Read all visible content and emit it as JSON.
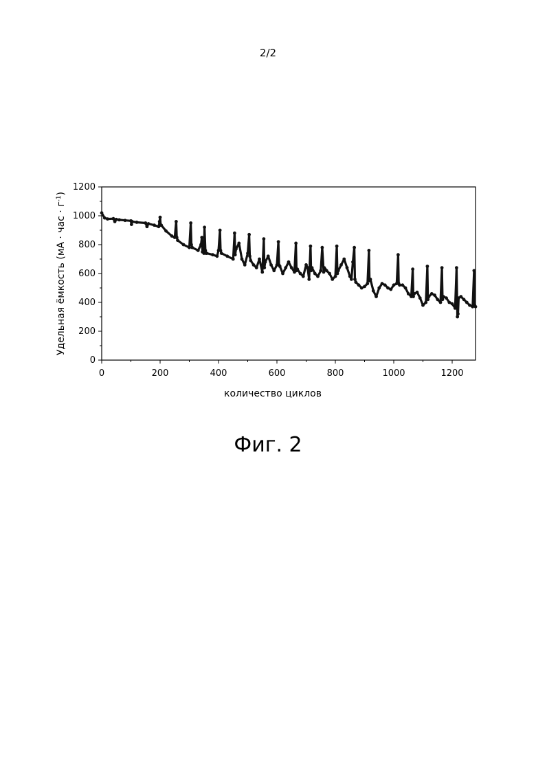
{
  "page": {
    "number": "2/2",
    "caption": "Фиг. 2"
  },
  "chart_data": {
    "type": "line",
    "title": "",
    "xlabel": "количество циклов",
    "ylabel_main": "Удельная ёмкость (мА · час · г",
    "ylabel_sup": "-1",
    "ylabel_close": ")",
    "xlim": [
      0,
      1280
    ],
    "ylim": [
      0,
      1200
    ],
    "xticks": [
      0,
      200,
      400,
      600,
      800,
      1000,
      1200
    ],
    "yticks": [
      0,
      200,
      400,
      600,
      800,
      1000,
      1200
    ],
    "grid": false,
    "legend": "none",
    "color": "#111111",
    "series": [
      {
        "x": [
          0,
          10,
          20,
          40,
          45,
          50,
          60,
          80,
          100,
          102,
          104,
          120,
          150,
          155,
          160,
          180,
          195,
          198,
          200,
          202,
          204,
          220,
          240,
          250,
          255,
          257,
          260,
          280,
          300,
          305,
          307,
          310,
          330,
          340,
          343,
          345,
          350,
          352,
          355,
          357,
          360,
          380,
          395,
          400,
          405,
          407,
          410,
          430,
          450,
          455,
          457,
          460,
          470,
          480,
          490,
          500,
          505,
          507,
          510,
          520,
          530,
          540,
          550,
          555,
          557,
          560,
          570,
          580,
          590,
          600,
          605,
          607,
          610,
          620,
          630,
          640,
          650,
          660,
          665,
          667,
          670,
          680,
          690,
          700,
          705,
          710,
          715,
          717,
          720,
          730,
          740,
          750,
          755,
          760,
          762,
          765,
          770,
          780,
          790,
          800,
          805,
          807,
          810,
          820,
          830,
          840,
          850,
          855,
          860,
          865,
          867,
          870,
          880,
          890,
          900,
          910,
          915,
          917,
          920,
          930,
          940,
          950,
          960,
          970,
          980,
          990,
          1000,
          1010,
          1015,
          1017,
          1020,
          1030,
          1040,
          1050,
          1060,
          1065,
          1067,
          1070,
          1080,
          1090,
          1100,
          1110,
          1115,
          1117,
          1120,
          1130,
          1140,
          1150,
          1160,
          1165,
          1167,
          1170,
          1180,
          1190,
          1200,
          1210,
          1215,
          1218,
          1220,
          1222,
          1230,
          1240,
          1250,
          1260,
          1270,
          1275,
          1277,
          1280
        ],
        "y": [
          1020,
          985,
          978,
          980,
          960,
          975,
          972,
          968,
          965,
          940,
          960,
          955,
          950,
          925,
          945,
          935,
          925,
          960,
          990,
          935,
          935,
          895,
          860,
          850,
          960,
          850,
          830,
          800,
          780,
          950,
          800,
          780,
          760,
          800,
          850,
          750,
          740,
          920,
          760,
          740,
          740,
          730,
          720,
          760,
          900,
          760,
          740,
          720,
          700,
          880,
          730,
          770,
          810,
          700,
          660,
          740,
          870,
          720,
          690,
          660,
          640,
          700,
          610,
          840,
          640,
          680,
          720,
          660,
          620,
          660,
          820,
          660,
          650,
          600,
          640,
          680,
          640,
          610,
          810,
          620,
          630,
          600,
          580,
          660,
          640,
          560,
          790,
          620,
          640,
          600,
          580,
          620,
          780,
          610,
          640,
          630,
          620,
          600,
          560,
          580,
          790,
          600,
          620,
          660,
          700,
          640,
          580,
          560,
          680,
          780,
          560,
          540,
          520,
          500,
          510,
          530,
          760,
          550,
          560,
          480,
          440,
          500,
          530,
          520,
          500,
          490,
          520,
          530,
          730,
          530,
          520,
          520,
          500,
          460,
          440,
          630,
          440,
          460,
          470,
          430,
          380,
          400,
          650,
          420,
          440,
          460,
          450,
          420,
          400,
          640,
          420,
          440,
          430,
          400,
          390,
          360,
          640,
          300,
          320,
          430,
          440,
          420,
          400,
          380,
          370,
          620,
          380,
          370
        ]
      }
    ]
  }
}
